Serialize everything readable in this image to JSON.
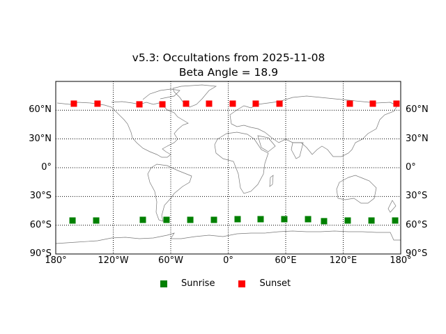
{
  "chart_data": {
    "type": "scatter",
    "title": "v5.3: Occultations from 2025-11-08",
    "subtitle": "Beta Angle = 18.9",
    "projection": "equirectangular world map (coastlines, country borders)",
    "xlabel": "",
    "ylabel": "",
    "xlim": [
      -180,
      180
    ],
    "ylim": [
      -90,
      90
    ],
    "grid": "dotted at 60° longitude / 30° latitude",
    "x_ticks": [
      "180°",
      "120°W",
      "60°W",
      "0°",
      "60°E",
      "120°E",
      "180°"
    ],
    "y_ticks_left": [
      "60°N",
      "30°N",
      "0°",
      "30°S",
      "60°S",
      "90°S"
    ],
    "y_ticks_right": [
      "60°N",
      "30°N",
      "0°",
      "30°S",
      "60°S",
      "90°S"
    ],
    "legend_position": "bottom center",
    "series": [
      {
        "name": "Sunrise",
        "color": "#008000",
        "marker": "square",
        "lon": [
          -162.5,
          -137.8,
          -89.1,
          -64.4,
          -39.6,
          -14.9,
          9.8,
          33.8,
          58.5,
          83.3,
          100.0,
          124.7,
          149.5,
          174.2
        ],
        "lat": [
          -55.1,
          -55.1,
          -54.4,
          -54.4,
          -54.4,
          -54.4,
          -53.7,
          -53.7,
          -53.7,
          -53.7,
          -55.8,
          -55.1,
          -55.1,
          -55.1
        ]
      },
      {
        "name": "Sunset",
        "color": "#ff0000",
        "marker": "square",
        "lon": [
          -161.1,
          -136.4,
          -92.7,
          -68.7,
          -44.0,
          -20.0,
          4.7,
          28.7,
          53.5,
          126.9,
          150.9,
          175.6
        ],
        "lat": [
          66.8,
          66.8,
          66.1,
          66.1,
          66.8,
          66.8,
          66.8,
          66.8,
          66.8,
          66.8,
          66.8,
          66.8
        ]
      }
    ]
  },
  "title": {
    "line1": "v5.3: Occultations from 2025-11-08",
    "line2": "Beta Angle = 18.9"
  },
  "axes": {
    "x_ticks": [
      "180°",
      "120°W",
      "60°W",
      "0°",
      "60°E",
      "120°E",
      "180°"
    ],
    "y_ticks": [
      "60°N",
      "30°N",
      "0°",
      "30°S",
      "60°S",
      "90°S"
    ]
  },
  "legend": {
    "items": [
      {
        "label": "Sunrise",
        "color": "#008000"
      },
      {
        "label": "Sunset",
        "color": "#ff0000"
      }
    ]
  }
}
